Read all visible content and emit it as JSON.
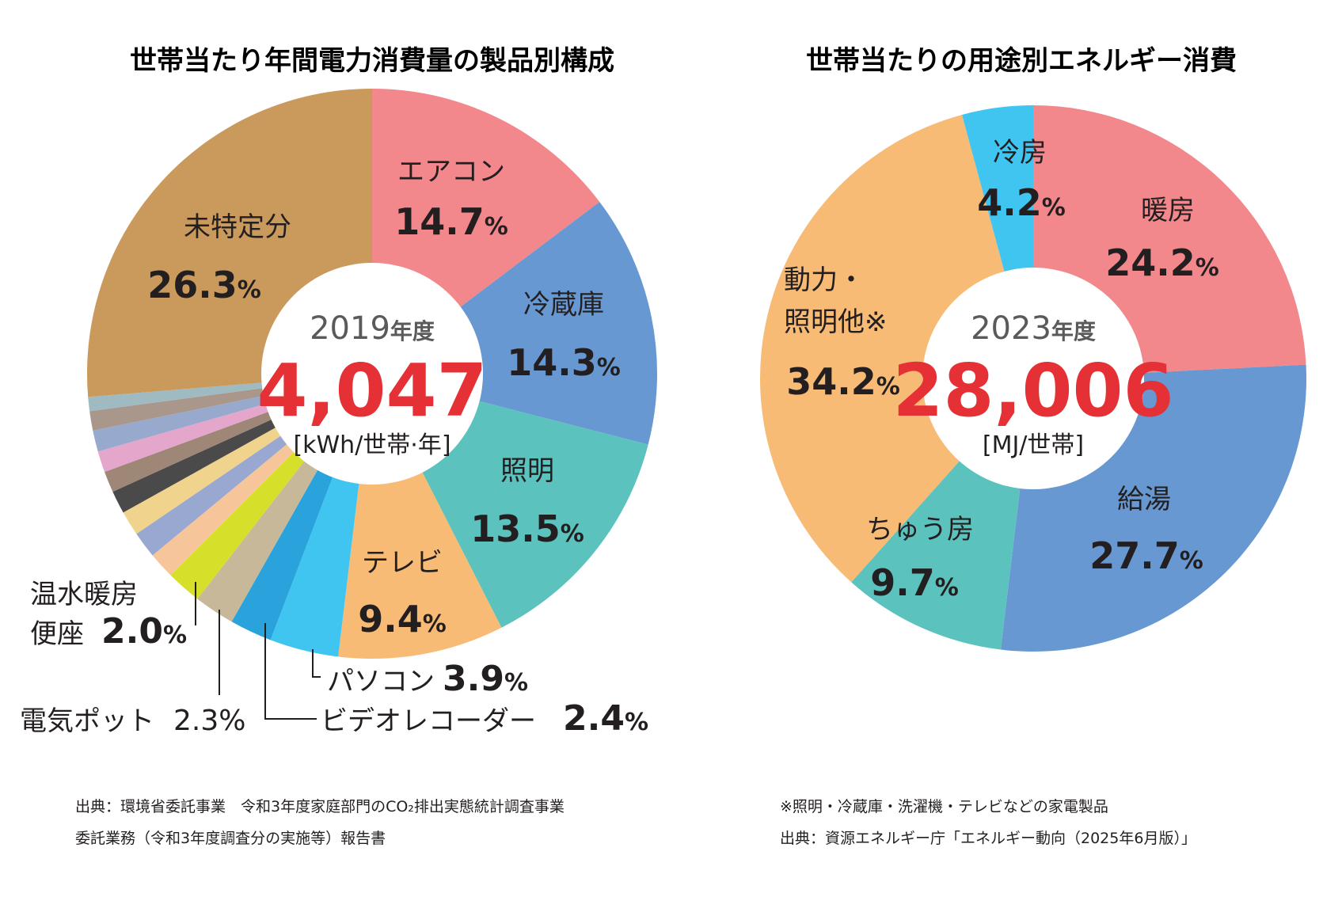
{
  "colors": {
    "text": "#231f20",
    "highlight": "#e53035",
    "center_bg": "#ffffff"
  },
  "chart_data": [
    {
      "type": "pie",
      "title": "世帯当たり年間電力消費量の製品別構成",
      "center": {
        "year": "2019",
        "year_unit": "年度",
        "total": "4,047",
        "unit": "[kWh/世帯·年]"
      },
      "values_unit": "%",
      "slices": [
        {
          "name": "エアコン",
          "value": 14.7,
          "display": "14.7",
          "pct": "%",
          "color": "#f2878c"
        },
        {
          "name": "冷蔵庫",
          "value": 14.3,
          "display": "14.3",
          "pct": "%",
          "color": "#6798d2"
        },
        {
          "name": "照明",
          "value": 13.5,
          "display": "13.5",
          "pct": "%",
          "color": "#5bc2bd"
        },
        {
          "name": "テレビ",
          "value": 9.4,
          "display": "9.4",
          "pct": "%",
          "color": "#f8bb76"
        },
        {
          "name": "パソコン",
          "value": 3.9,
          "display": "3.9",
          "pct": "%",
          "color": "#40c5f1"
        },
        {
          "name": "ビデオレコーダー",
          "value": 2.4,
          "display": "2.4",
          "pct": "%",
          "color": "#2aa3dd"
        },
        {
          "name": "電気ポット",
          "value": 2.3,
          "display": "2.3",
          "pct": "%",
          "color": "#c8b89a"
        },
        {
          "name": "温水暖房便座",
          "value": 2.0,
          "display": "2.0",
          "pct": "%",
          "color": "#d6df2a"
        },
        {
          "name": "",
          "value": 1.5,
          "color": "#f6c69a"
        },
        {
          "name": "",
          "value": 1.5,
          "color": "#98a8d0"
        },
        {
          "name": "",
          "value": 1.4,
          "color": "#f0d38c"
        },
        {
          "name": "",
          "value": 1.3,
          "color": "#4a4a4a"
        },
        {
          "name": "",
          "value": 1.2,
          "color": "#9e8777"
        },
        {
          "name": "",
          "value": 1.2,
          "color": "#e5a6cb"
        },
        {
          "name": "",
          "value": 1.2,
          "color": "#97a9cd"
        },
        {
          "name": "",
          "value": 1.1,
          "color": "#a9978c"
        },
        {
          "name": "",
          "value": 0.8,
          "color": "#9fbac0"
        },
        {
          "name": "未特定分",
          "value": 26.3,
          "display": "26.3",
          "pct": "%",
          "color": "#c99a5c"
        }
      ]
    },
    {
      "type": "pie",
      "title": "世帯当たりの用途別エネルギー消費",
      "center": {
        "year": "2023",
        "year_unit": "年度",
        "total": "28,006",
        "unit": "[MJ/世帯]"
      },
      "values_unit": "%",
      "slices": [
        {
          "name": "暖房",
          "value": 24.2,
          "display": "24.2",
          "pct": "%",
          "color": "#f2878c"
        },
        {
          "name": "給湯",
          "value": 27.7,
          "display": "27.7",
          "pct": "%",
          "color": "#6798d2"
        },
        {
          "name": "ちゅう房",
          "value": 9.7,
          "display": "9.7",
          "pct": "%",
          "color": "#5bc2bd"
        },
        {
          "name": "動力・照明他※",
          "name_lines": [
            "動力・",
            "照明他※"
          ],
          "value": 34.2,
          "display": "34.2",
          "pct": "%",
          "color": "#f8bb76"
        },
        {
          "name": "冷房",
          "value": 4.2,
          "display": "4.2",
          "pct": "%",
          "color": "#40c5f1"
        }
      ]
    }
  ],
  "notes": {
    "left_line1": "出典：環境省委託事業　令和3年度家庭部門のCO₂排出実態統計調査事業",
    "left_line2": "委託業務（令和3年度調査分の実施等）報告書",
    "right_line1": "※照明・冷蔵庫・洗濯機・テレビなどの家電製品",
    "right_line2": "出典：資源エネルギー庁「エネルギー動向（2025年6月版）」"
  }
}
